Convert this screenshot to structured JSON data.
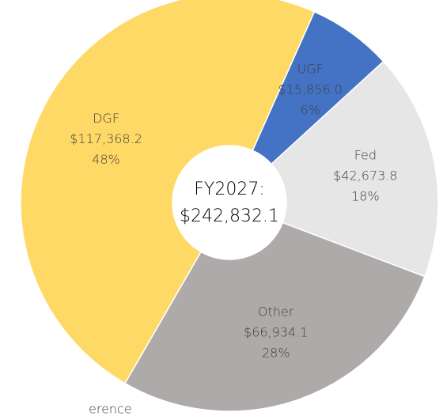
{
  "chart_data": {
    "type": "donut",
    "categories": [
      "UGF",
      "Fed",
      "Other",
      "DGF"
    ],
    "values": [
      15856.0,
      42673.8,
      66934.1,
      117368.2
    ],
    "value_labels": [
      "$15,856.0",
      "$42,673.8",
      "$66,934.1",
      "$117,368.2"
    ],
    "percent_labels": [
      "6%",
      "18%",
      "28%",
      "48%"
    ],
    "colors": [
      "#4472c4",
      "#e7e6e6",
      "#aeaaaa",
      "#ffd966"
    ],
    "center_title": "FY2027:",
    "center_total": "$242,832.1",
    "annotation": "erence"
  }
}
